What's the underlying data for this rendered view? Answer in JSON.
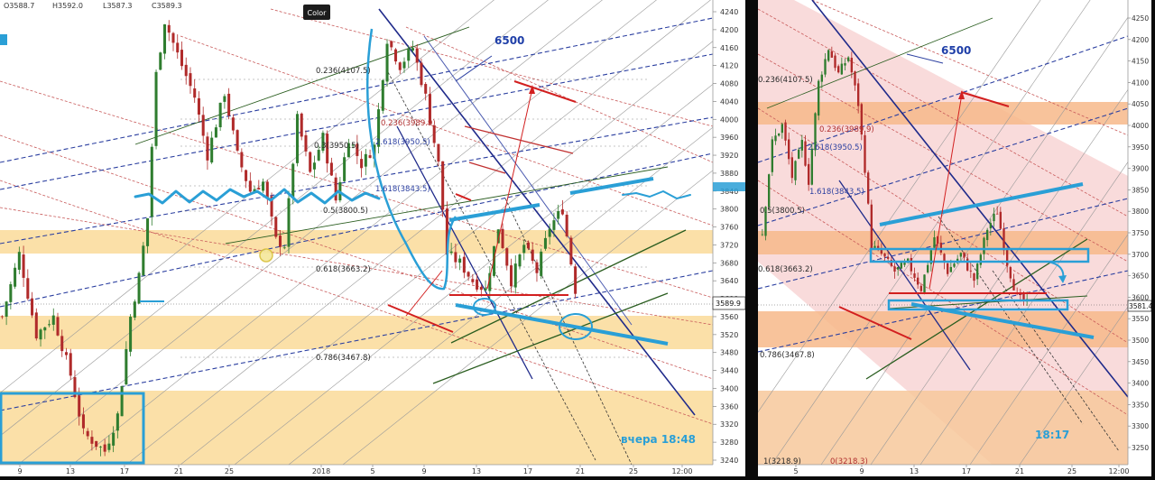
{
  "header": {
    "ohlc": [
      "O3588.7",
      "H3592.0",
      "L3587.3",
      "C3589.3"
    ],
    "tooltip": "Color"
  },
  "colors": {
    "up": "#2f7d2f",
    "down": "#b02a2a",
    "zone": "#f9d38c",
    "zone_right": "#f4b27a",
    "pink": "#f7c9c9",
    "accent": "#2a9fd6",
    "navy": "#1f2a8a"
  },
  "chart_data": [
    {
      "type": "candlestick",
      "panel": "left",
      "annotations": [
        "6500",
        "вчера 18:48"
      ],
      "price_label": "3589.9",
      "x_ticks": [
        "9",
        "13",
        "17",
        "21",
        "25",
        "2018",
        "5",
        "9",
        "13",
        "17",
        "21",
        "25",
        "12:00"
      ],
      "y_ticks": [
        3240,
        3280,
        3320,
        3360,
        3400,
        3440,
        3480,
        3520,
        3560,
        3600,
        3640,
        3680,
        3720,
        3760,
        3800,
        3840,
        3880,
        3920,
        3960,
        4000,
        4040,
        4080,
        4120,
        4160,
        4200,
        4240
      ],
      "fib_levels": [
        {
          "label": "0.236(4107.5)",
          "value": 4107.5
        },
        {
          "label": "0.236(3989.9)",
          "value": 3989.9
        },
        {
          "label": "0.3(3950.5)",
          "value": 3950.5
        },
        {
          "label": "2.618(3950.5)",
          "value": 3950.5
        },
        {
          "label": "1.618(3843.5)",
          "value": 3843.5
        },
        {
          "label": "0.5(3800.5)",
          "value": 3800.5
        },
        {
          "label": "0.618(3663.2)",
          "value": 3663.2
        },
        {
          "label": "0.786(3467.8)",
          "value": 3467.8
        }
      ],
      "ylim": [
        3220,
        4260
      ]
    },
    {
      "type": "candlestick",
      "panel": "right",
      "annotations": [
        "6500",
        "18:17"
      ],
      "price_label": "3581.4",
      "x_ticks": [
        "5",
        "9",
        "13",
        "17",
        "21",
        "25",
        "12:00"
      ],
      "y_ticks": [
        3250,
        3300,
        3350,
        3400,
        3450,
        3500,
        3550,
        3600,
        3650,
        3700,
        3750,
        3800,
        3850,
        3900,
        3950,
        4000,
        4050,
        4100,
        4150,
        4200,
        4250
      ],
      "fib_levels": [
        {
          "label": "0.236(4107.5)",
          "value": 4107.5
        },
        {
          "label": "0.236(3989.9)",
          "value": 3989.9
        },
        {
          "label": "2.618(3950.5)",
          "value": 3950.5
        },
        {
          "label": "1.618(3843.5)",
          "value": 3843.5
        },
        {
          "label": "0.5(3800.5)",
          "value": 3800.5
        },
        {
          "label": "0.618(3663.2)",
          "value": 3663.2
        },
        {
          "label": "0.786(3467.8)",
          "value": 3467.8
        },
        {
          "label": "1(3218.9)",
          "value": 3218.9
        },
        {
          "label": "0(3218.3)",
          "value": 3218.3
        }
      ],
      "ylim": [
        3230,
        4280
      ]
    }
  ]
}
